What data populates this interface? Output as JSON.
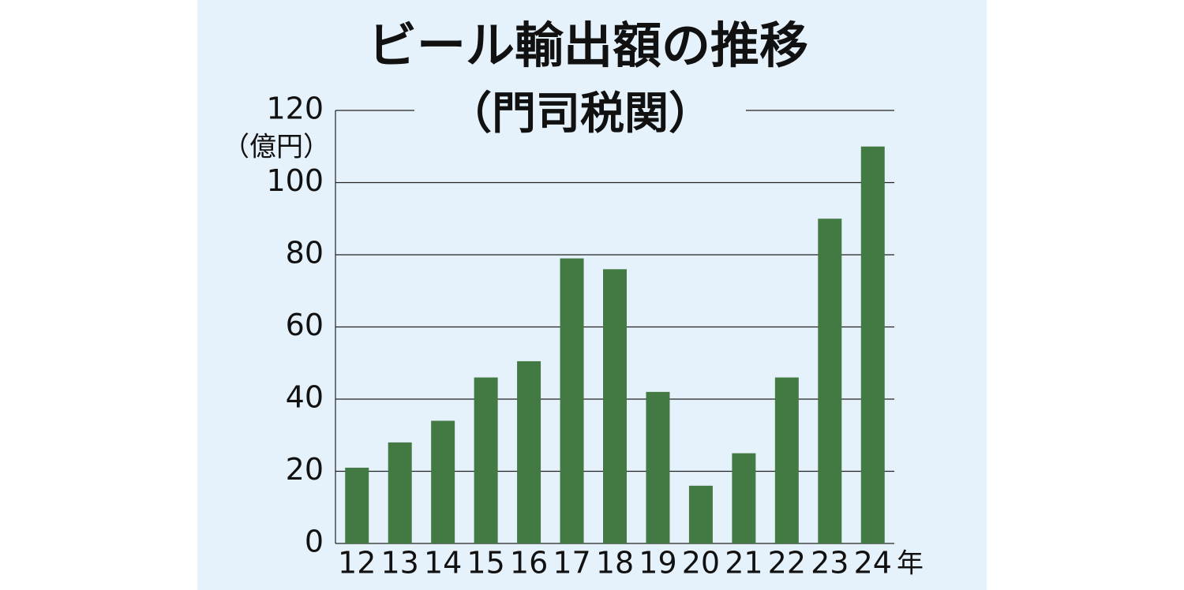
{
  "chart_data": {
    "type": "bar",
    "title": "ビール輸出額の推移",
    "subtitle": "（門司税関）",
    "ylabel": "（億円）",
    "xlabel": "年",
    "categories": [
      "12",
      "13",
      "14",
      "15",
      "16",
      "17",
      "18",
      "19",
      "20",
      "21",
      "22",
      "23",
      "24"
    ],
    "values": [
      21,
      28,
      34,
      46,
      50.5,
      79,
      76,
      42,
      16,
      25,
      46,
      90,
      110
    ],
    "color": "#437a44",
    "ylim": [
      0,
      120
    ],
    "yticks": [
      0,
      20,
      40,
      60,
      80,
      100,
      120
    ],
    "grid": true
  }
}
